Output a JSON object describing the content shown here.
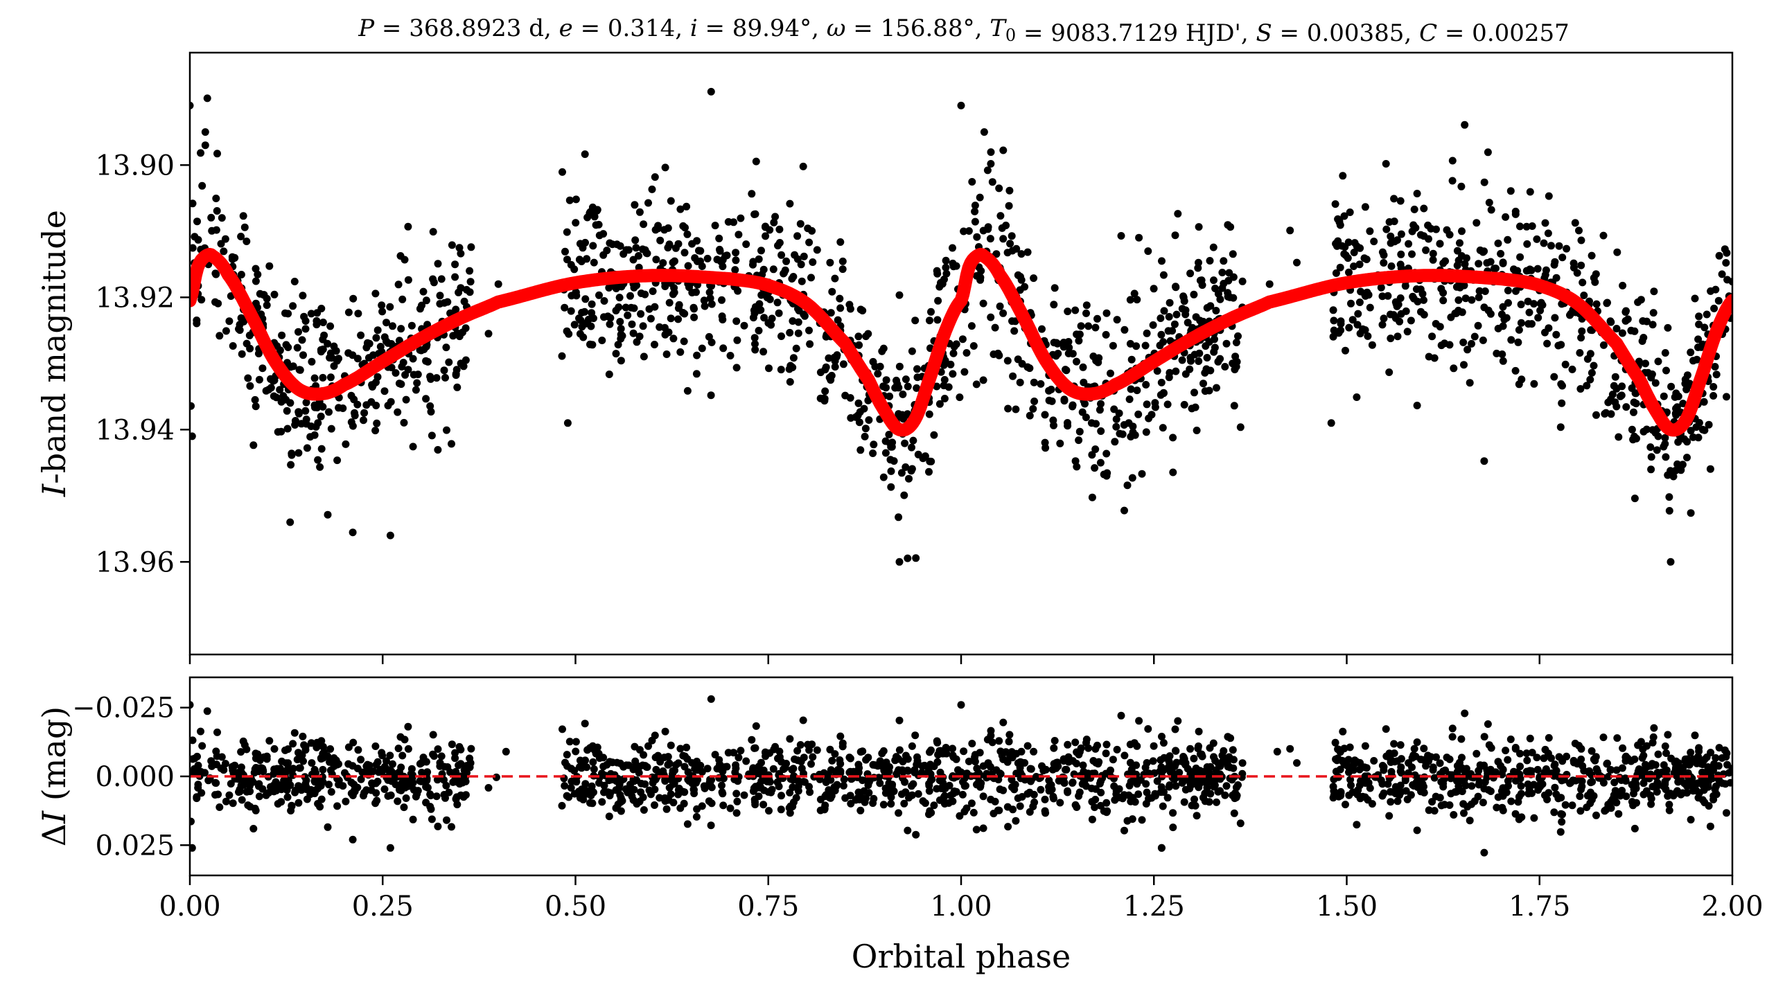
{
  "title": "P = 368.8923 d, e = 0.314, i = 89.94°, ω = 156.88°, T0 = 9083.7129 HJD', S = 0.00385, C = 0.00257",
  "chart_data": [
    {
      "panel": "top",
      "type": "scatter",
      "title": "P = 368.8923 d, e = 0.314, i = 89.94°, ω = 156.88°, T0 = 9083.7129 HJD', S = 0.00385, C = 0.00257",
      "xlabel": "",
      "ylabel": "I-band magnitude",
      "xlim": [
        0.0,
        2.0
      ],
      "ylim": [
        13.974,
        13.883
      ],
      "y_inverted": true,
      "yticks": [
        "13.90",
        "13.92",
        "13.94",
        "13.96"
      ],
      "ytick_values": [
        13.9,
        13.92,
        13.94,
        13.96
      ],
      "grid": false,
      "legend": "none",
      "series": [
        {
          "kind": "observations",
          "color": "#000000",
          "observed_gaps": [
            [
              0.365,
              0.48
            ],
            [
              1.365,
              1.48
            ]
          ],
          "envelope": {
            "phase": [
              0.0,
              0.03,
              0.08,
              0.16,
              0.25,
              0.35,
              0.48,
              0.6,
              0.7,
              0.8,
              0.88,
              0.92,
              0.96,
              1.0,
              1.03
            ],
            "median": [
              13.92,
              13.912,
              13.92,
              13.932,
              13.928,
              13.924,
              13.919,
              13.917,
              13.92,
              13.928,
              13.937,
              13.942,
              13.93,
              13.915,
              13.911
            ],
            "scatter": [
              0.006,
              0.006,
              0.008,
              0.01,
              0.01,
              0.008,
              0.007,
              0.007,
              0.007,
              0.008,
              0.01,
              0.011,
              0.009,
              0.006,
              0.006
            ]
          },
          "notable_points": [
            {
              "x": 0.0,
              "y": 13.891
            },
            {
              "x": 0.02,
              "y": 13.895
            },
            {
              "x": 0.02,
              "y": 13.897
            },
            {
              "x": 1.0,
              "y": 13.891
            },
            {
              "x": 1.03,
              "y": 13.895
            },
            {
              "x": 0.92,
              "y": 13.96
            },
            {
              "x": 1.92,
              "y": 13.96
            },
            {
              "x": 0.26,
              "y": 13.956
            },
            {
              "x": 0.13,
              "y": 13.954
            },
            {
              "x": 0.41,
              "y": 13.92
            },
            {
              "x": 0.4,
              "y": 13.918
            },
            {
              "x": 1.41,
              "y": 13.92
            },
            {
              "x": 1.4,
              "y": 13.918
            },
            {
              "x": 0.49,
              "y": 13.939
            },
            {
              "x": 1.48,
              "y": 13.939
            },
            {
              "x": 0.003,
              "y": 13.941
            },
            {
              "x": 1.53,
              "y": 13.91
            }
          ]
        },
        {
          "kind": "model",
          "color": "#ff0000",
          "phase": [
            0.0,
            0.01,
            0.02,
            0.03,
            0.05,
            0.08,
            0.11,
            0.14,
            0.17,
            0.2,
            0.25,
            0.3,
            0.35,
            0.4,
            0.5,
            0.6,
            0.7,
            0.75,
            0.8,
            0.85,
            0.88,
            0.9,
            0.92,
            0.94,
            0.96,
            0.98,
            1.0
          ],
          "magnitude": [
            13.9205,
            13.9155,
            13.9138,
            13.9138,
            13.9166,
            13.9228,
            13.9296,
            13.9338,
            13.9346,
            13.9332,
            13.9297,
            13.9262,
            13.9232,
            13.9207,
            13.9178,
            13.9167,
            13.9172,
            13.9182,
            13.921,
            13.927,
            13.9325,
            13.937,
            13.94,
            13.9385,
            13.932,
            13.925,
            13.9205
          ]
        }
      ]
    },
    {
      "panel": "bottom",
      "type": "scatter",
      "xlabel": "Orbital phase",
      "ylabel": "ΔI (mag)",
      "xlim": [
        0.0,
        2.0
      ],
      "xticks": [
        "0.00",
        "0.25",
        "0.50",
        "0.75",
        "1.00",
        "1.25",
        "1.50",
        "1.75",
        "2.00"
      ],
      "xtick_values": [
        0.0,
        0.25,
        0.5,
        0.75,
        1.0,
        1.25,
        1.5,
        1.75,
        2.0
      ],
      "ylim": [
        0.036,
        -0.036
      ],
      "y_inverted": true,
      "yticks": [
        "−0.025",
        "0.000",
        "0.025"
      ],
      "ytick_values": [
        -0.025,
        0.0,
        0.025
      ],
      "grid": false,
      "legend": "none",
      "series": [
        {
          "kind": "residuals",
          "color": "#000000",
          "scatter_sigma": 0.0065,
          "observed_gaps": [
            [
              0.365,
              0.48
            ],
            [
              1.365,
              1.48
            ]
          ],
          "notable_points": [
            {
              "x": 0.0,
              "y": -0.026
            },
            {
              "x": 1.0,
              "y": -0.026
            },
            {
              "x": 0.003,
              "y": 0.026
            },
            {
              "x": 0.26,
              "y": 0.026
            },
            {
              "x": 1.26,
              "y": 0.026
            },
            {
              "x": 1.26,
              "y": 0.026
            },
            {
              "x": 0.41,
              "y": -0.009
            },
            {
              "x": 1.41,
              "y": -0.009
            }
          ]
        },
        {
          "kind": "zero-line",
          "color": "#e8141b",
          "style": "dashed",
          "y": 0.0
        }
      ]
    }
  ]
}
